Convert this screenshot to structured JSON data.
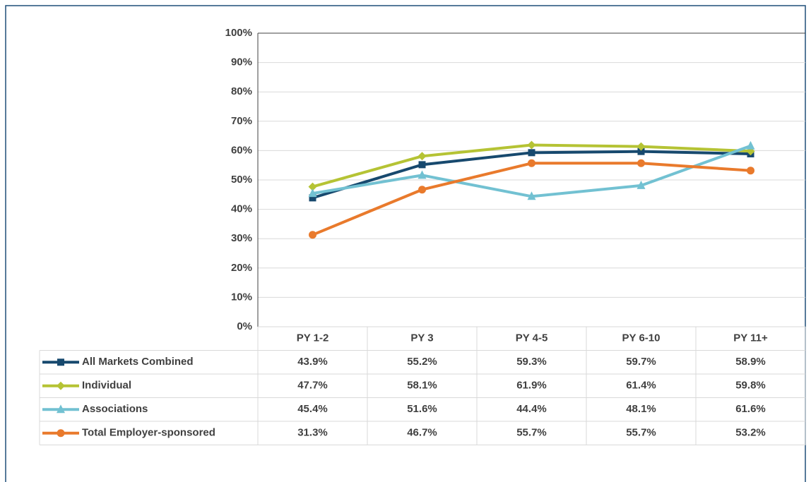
{
  "chart_data": {
    "type": "line",
    "categories": [
      "PY 1-2",
      "PY 3",
      "PY 4-5",
      "PY 6-10",
      "PY 11+"
    ],
    "series": [
      {
        "name": "All Markets Combined",
        "color": "#17496e",
        "marker": "square",
        "values": [
          43.9,
          55.2,
          59.3,
          59.7,
          58.9
        ],
        "value_labels": [
          "43.9%",
          "55.2%",
          "59.3%",
          "59.7%",
          "58.9%"
        ]
      },
      {
        "name": "Individual",
        "color": "#b5c334",
        "marker": "diamond",
        "values": [
          47.7,
          58.1,
          61.9,
          61.4,
          59.8
        ],
        "value_labels": [
          "47.7%",
          "58.1%",
          "61.9%",
          "61.4%",
          "59.8%"
        ]
      },
      {
        "name": "Associations",
        "color": "#72c1d2",
        "marker": "triangle",
        "values": [
          45.4,
          51.6,
          44.4,
          48.1,
          61.6
        ],
        "value_labels": [
          "45.4%",
          "51.6%",
          "44.4%",
          "48.1%",
          "61.6%"
        ]
      },
      {
        "name": "Total Employer-sponsored",
        "color": "#e97a2c",
        "marker": "circle",
        "values": [
          31.3,
          46.7,
          55.7,
          55.7,
          53.2
        ],
        "value_labels": [
          "31.3%",
          "46.7%",
          "55.7%",
          "55.7%",
          "53.2%"
        ]
      }
    ],
    "ylim": [
      0,
      100
    ],
    "yticks": [
      {
        "value": 0,
        "label": "0%"
      },
      {
        "value": 10,
        "label": "10%"
      },
      {
        "value": 20,
        "label": "20%"
      },
      {
        "value": 30,
        "label": "30%"
      },
      {
        "value": 40,
        "label": "40%"
      },
      {
        "value": 50,
        "label": "50%"
      },
      {
        "value": 60,
        "label": "60%"
      },
      {
        "value": 70,
        "label": "70%"
      },
      {
        "value": 80,
        "label": "80%"
      },
      {
        "value": 90,
        "label": "90%"
      },
      {
        "value": 100,
        "label": "100%"
      }
    ],
    "grid": true
  }
}
